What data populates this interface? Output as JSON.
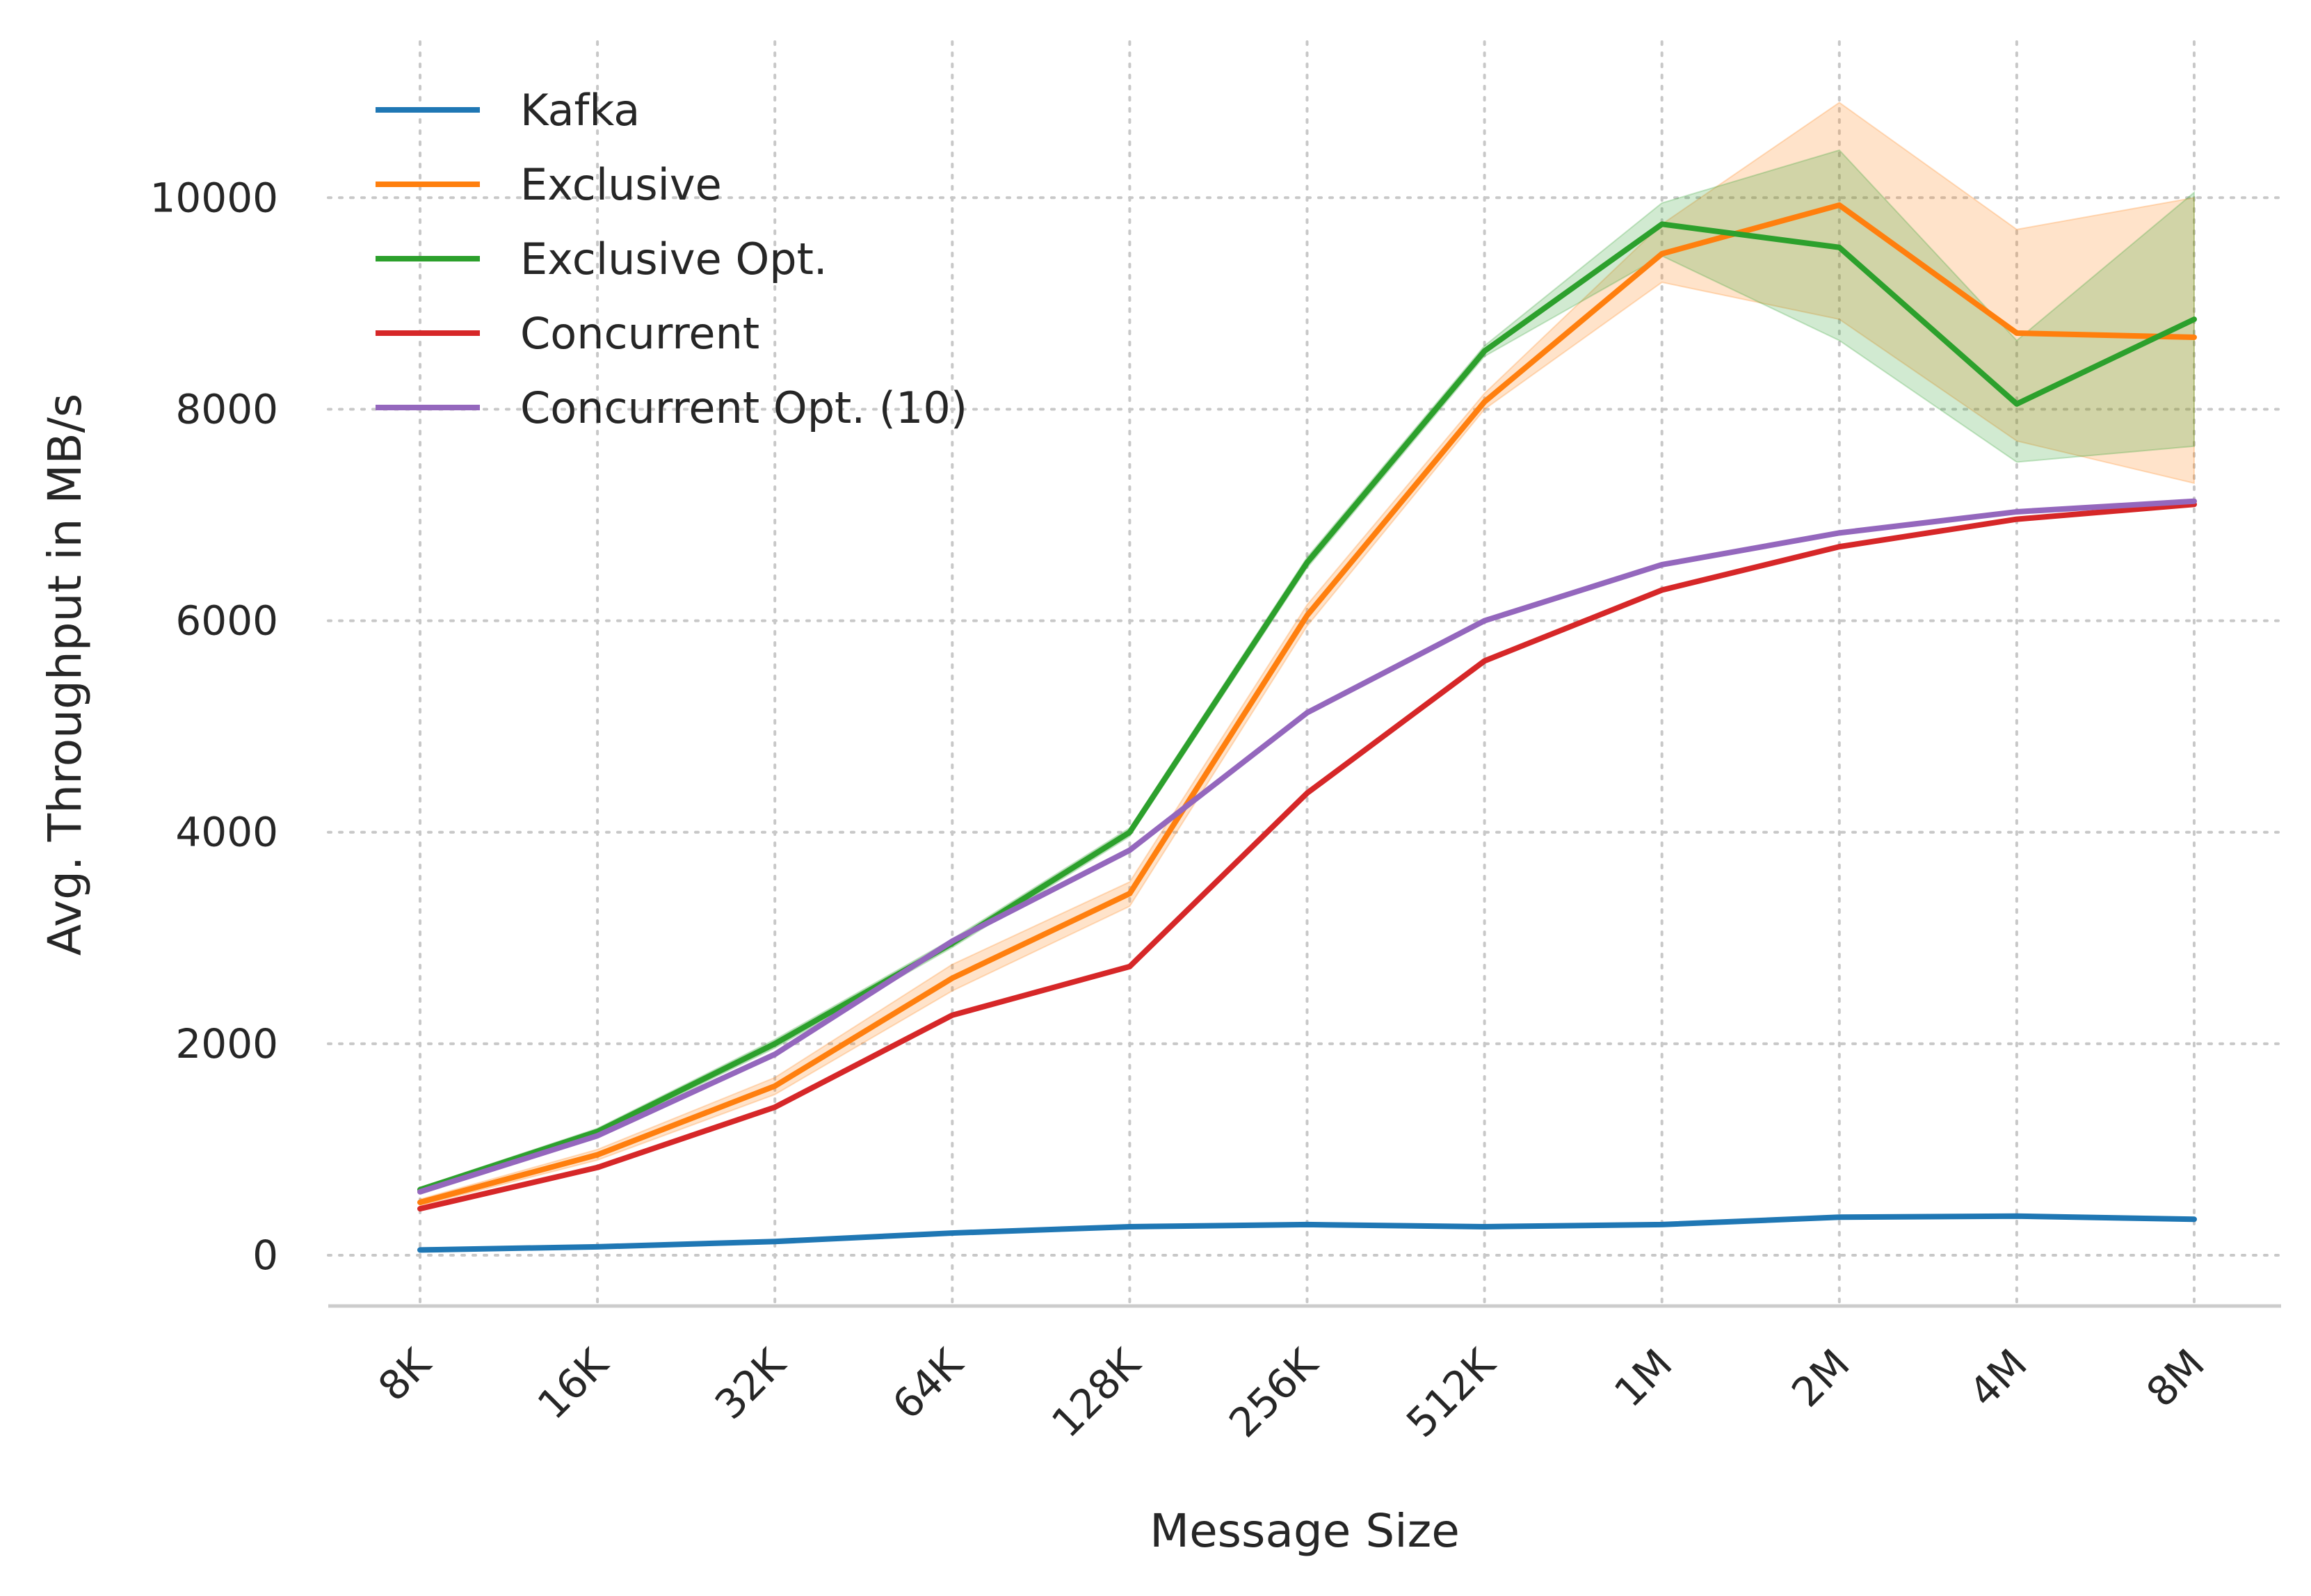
{
  "chart_data": {
    "type": "line",
    "title": "",
    "xlabel": "Message Size",
    "ylabel": "Avg. Throughput in MB/s",
    "categories": [
      "8K",
      "16K",
      "32K",
      "64K",
      "128K",
      "256K",
      "512K",
      "1M",
      "2M",
      "4M",
      "8M"
    ],
    "yticks": [
      "0",
      "2000",
      "4000",
      "6000",
      "8000",
      "10000"
    ],
    "ylim": [
      -500,
      11000
    ],
    "grid": true,
    "legend_position": "top-left",
    "series": [
      {
        "name": "Kafka",
        "color": "#1f77b4",
        "values": [
          50,
          80,
          130,
          210,
          270,
          290,
          270,
          290,
          360,
          370,
          340
        ]
      },
      {
        "name": "Exclusive",
        "color": "#ff7f0e",
        "values": [
          500,
          950,
          1600,
          2620,
          3420,
          6050,
          8070,
          9470,
          9930,
          8720,
          8680
        ],
        "band_low": [
          470,
          900,
          1520,
          2500,
          3300,
          5950,
          8000,
          9200,
          8850,
          7700,
          7300
        ],
        "band_high": [
          530,
          1000,
          1680,
          2750,
          3530,
          6150,
          8150,
          9750,
          10900,
          9700,
          10000
        ]
      },
      {
        "name": "Exclusive Opt.",
        "color": "#2ca02c",
        "values": [
          620,
          1170,
          2000,
          2950,
          4000,
          6550,
          8550,
          9750,
          9530,
          8050,
          8850
        ],
        "band_low": [
          600,
          1140,
          1960,
          2910,
          3960,
          6500,
          8500,
          9450,
          8650,
          7500,
          7650
        ],
        "band_high": [
          640,
          1200,
          2040,
          2990,
          4040,
          6600,
          8600,
          9950,
          10450,
          8650,
          10050
        ]
      },
      {
        "name": "Concurrent",
        "color": "#d62728",
        "values": [
          440,
          830,
          1400,
          2270,
          2730,
          4370,
          5620,
          6290,
          6700,
          6960,
          7100
        ]
      },
      {
        "name": "Concurrent Opt. (10)",
        "color": "#9467bd",
        "values": [
          600,
          1130,
          1900,
          2970,
          3830,
          5130,
          6000,
          6530,
          6830,
          7030,
          7130
        ]
      }
    ]
  }
}
